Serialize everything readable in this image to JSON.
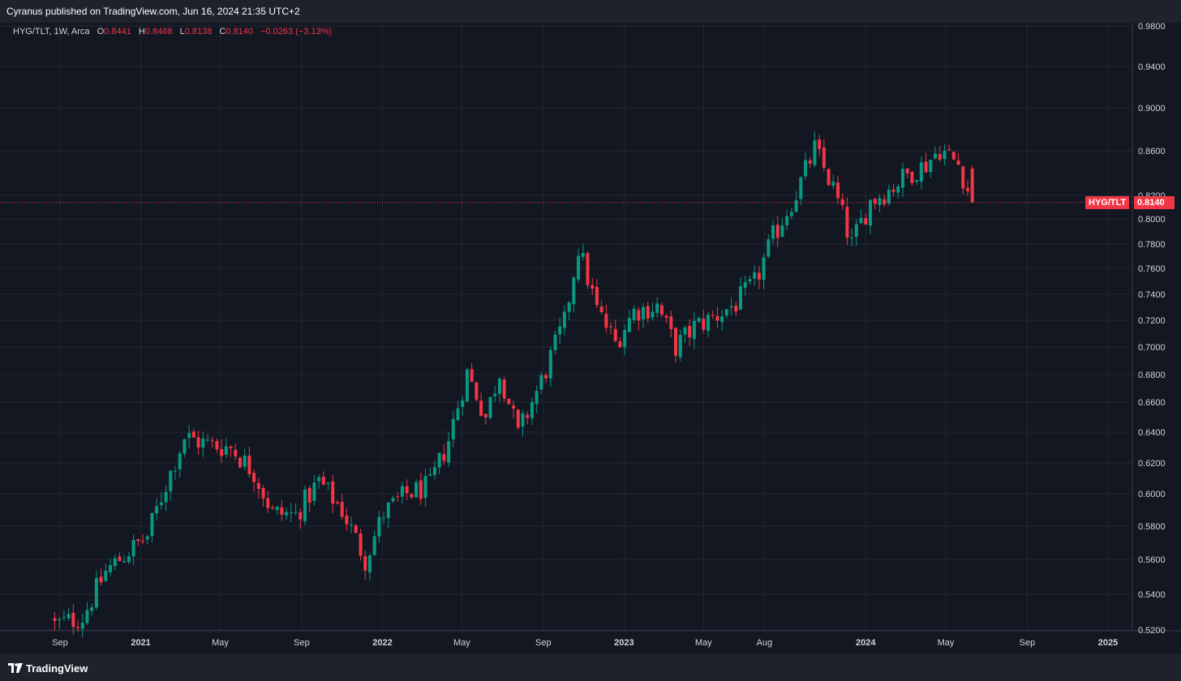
{
  "header": {
    "published_text": "Cyranus published on TradingView.com, Jun 16, 2024 21:35 UTC+2"
  },
  "legend": {
    "symbol": "HYG/TLT, 1W, Arca",
    "open_label": "O",
    "open": "0.8441",
    "high_label": "H",
    "high": "0.8468",
    "low_label": "L",
    "low": "0.8138",
    "close_label": "C",
    "close": "0.8140",
    "change": "−0.0263 (−3.13%)"
  },
  "last_price": {
    "symbol_tag": "HYG/TLT",
    "value_tag": "0.8140"
  },
  "footer": {
    "brand": "TradingView"
  },
  "colors": {
    "background": "#131722",
    "grid": "#232733",
    "up": "#089981",
    "down": "#f23645",
    "axis_text": "#d1d4dc"
  },
  "chart_data": {
    "type": "candlestick",
    "timeframe": "1W",
    "ylim": [
      0.52,
      0.98
    ],
    "y_ticks": [
      "0.9800",
      "0.9400",
      "0.9000",
      "0.8600",
      "0.8200",
      "0.8000",
      "0.7800",
      "0.7600",
      "0.7400",
      "0.7200",
      "0.7000",
      "0.6800",
      "0.6600",
      "0.6400",
      "0.6200",
      "0.6000",
      "0.5800",
      "0.5600",
      "0.5400",
      "0.5200"
    ],
    "x_ticks": [
      {
        "label": "Sep",
        "date": "2020-09-01"
      },
      {
        "label": "2021",
        "date": "2021-01-01"
      },
      {
        "label": "May",
        "date": "2021-05-01"
      },
      {
        "label": "Sep",
        "date": "2021-09-01"
      },
      {
        "label": "2022",
        "date": "2022-01-01"
      },
      {
        "label": "May",
        "date": "2022-05-01"
      },
      {
        "label": "Sep",
        "date": "2022-09-01"
      },
      {
        "label": "2023",
        "date": "2023-01-01"
      },
      {
        "label": "May",
        "date": "2023-05-01"
      },
      {
        "label": "Aug",
        "date": "2023-08-01"
      },
      {
        "label": "2024",
        "date": "2024-01-01"
      },
      {
        "label": "May",
        "date": "2024-05-01"
      },
      {
        "label": "Sep",
        "date": "2024-09-01"
      },
      {
        "label": "2025",
        "date": "2025-01-01"
      }
    ],
    "series_close_anchors": [
      {
        "date": "2020-08-24",
        "close": 0.523
      },
      {
        "date": "2020-10-05",
        "close": 0.527
      },
      {
        "date": "2020-11-09",
        "close": 0.553
      },
      {
        "date": "2020-12-14",
        "close": 0.565
      },
      {
        "date": "2021-01-11",
        "close": 0.574
      },
      {
        "date": "2021-02-08",
        "close": 0.606
      },
      {
        "date": "2021-03-08",
        "close": 0.637
      },
      {
        "date": "2021-04-12",
        "close": 0.632
      },
      {
        "date": "2021-05-17",
        "close": 0.63
      },
      {
        "date": "2021-06-21",
        "close": 0.614
      },
      {
        "date": "2021-07-19",
        "close": 0.588
      },
      {
        "date": "2021-08-23",
        "close": 0.587
      },
      {
        "date": "2021-09-27",
        "close": 0.608
      },
      {
        "date": "2021-11-01",
        "close": 0.59
      },
      {
        "date": "2021-12-06",
        "close": 0.56
      },
      {
        "date": "2022-01-03",
        "close": 0.588
      },
      {
        "date": "2022-02-07",
        "close": 0.6
      },
      {
        "date": "2022-03-14",
        "close": 0.605
      },
      {
        "date": "2022-04-11",
        "close": 0.635
      },
      {
        "date": "2022-05-09",
        "close": 0.681
      },
      {
        "date": "2022-06-06",
        "close": 0.65
      },
      {
        "date": "2022-06-27",
        "close": 0.682
      },
      {
        "date": "2022-07-25",
        "close": 0.638
      },
      {
        "date": "2022-08-29",
        "close": 0.675
      },
      {
        "date": "2022-10-03",
        "close": 0.718
      },
      {
        "date": "2022-10-24",
        "close": 0.777
      },
      {
        "date": "2022-11-21",
        "close": 0.728
      },
      {
        "date": "2022-12-19",
        "close": 0.703
      },
      {
        "date": "2023-01-16",
        "close": 0.727
      },
      {
        "date": "2023-02-20",
        "close": 0.731
      },
      {
        "date": "2023-03-20",
        "close": 0.7
      },
      {
        "date": "2023-04-17",
        "close": 0.715
      },
      {
        "date": "2023-05-22",
        "close": 0.724
      },
      {
        "date": "2023-06-19",
        "close": 0.733
      },
      {
        "date": "2023-07-17",
        "close": 0.748
      },
      {
        "date": "2023-08-14",
        "close": 0.785
      },
      {
        "date": "2023-09-18",
        "close": 0.822
      },
      {
        "date": "2023-10-16",
        "close": 0.862
      },
      {
        "date": "2023-11-13",
        "close": 0.826
      },
      {
        "date": "2023-12-11",
        "close": 0.779
      },
      {
        "date": "2024-01-08",
        "close": 0.815
      },
      {
        "date": "2024-02-05",
        "close": 0.825
      },
      {
        "date": "2024-03-04",
        "close": 0.839
      },
      {
        "date": "2024-04-01",
        "close": 0.848
      },
      {
        "date": "2024-04-22",
        "close": 0.862
      },
      {
        "date": "2024-05-20",
        "close": 0.848
      },
      {
        "date": "2024-06-10",
        "close": 0.814
      }
    ],
    "last_candle": {
      "open": 0.8441,
      "high": 0.8468,
      "low": 0.8138,
      "close": 0.814
    },
    "last_price": 0.814
  }
}
